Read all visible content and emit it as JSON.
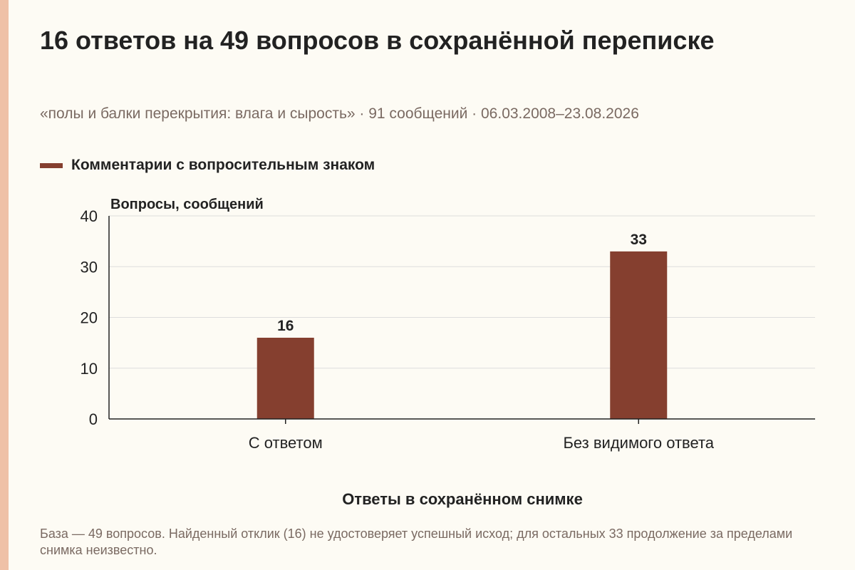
{
  "title": "16 ответов на 49 вопросов в сохранённой переписке",
  "subtitle": "«полы и балки перекрытия: влага и сырость» · 91 сообщений · 06.03.2008–23.08.2026",
  "footnote": "База — 49 вопросов. Найденный отклик (16) не удостоверяет успешный исход; для остальных 33 продолжение за пределами снимка неизвестно.",
  "colors": {
    "accent_bar": "#efc1a7",
    "bar": "#853f2f",
    "grid": "#dddddd",
    "axis": "#222222"
  },
  "chart_data": {
    "type": "bar",
    "categories": [
      "С ответом",
      "Без видимого ответа"
    ],
    "series": [
      {
        "name": "Комментарии с вопросительным знаком",
        "values": [
          16,
          33
        ]
      }
    ],
    "ylabel": "Вопросы, сообщений",
    "xlabel": "Ответы в сохранённом снимке",
    "ylim": [
      0,
      40
    ],
    "yticks": [
      0,
      10,
      20,
      30,
      40
    ],
    "grid": true,
    "legend": "top-left",
    "data_labels": [
      "16",
      "33"
    ]
  }
}
